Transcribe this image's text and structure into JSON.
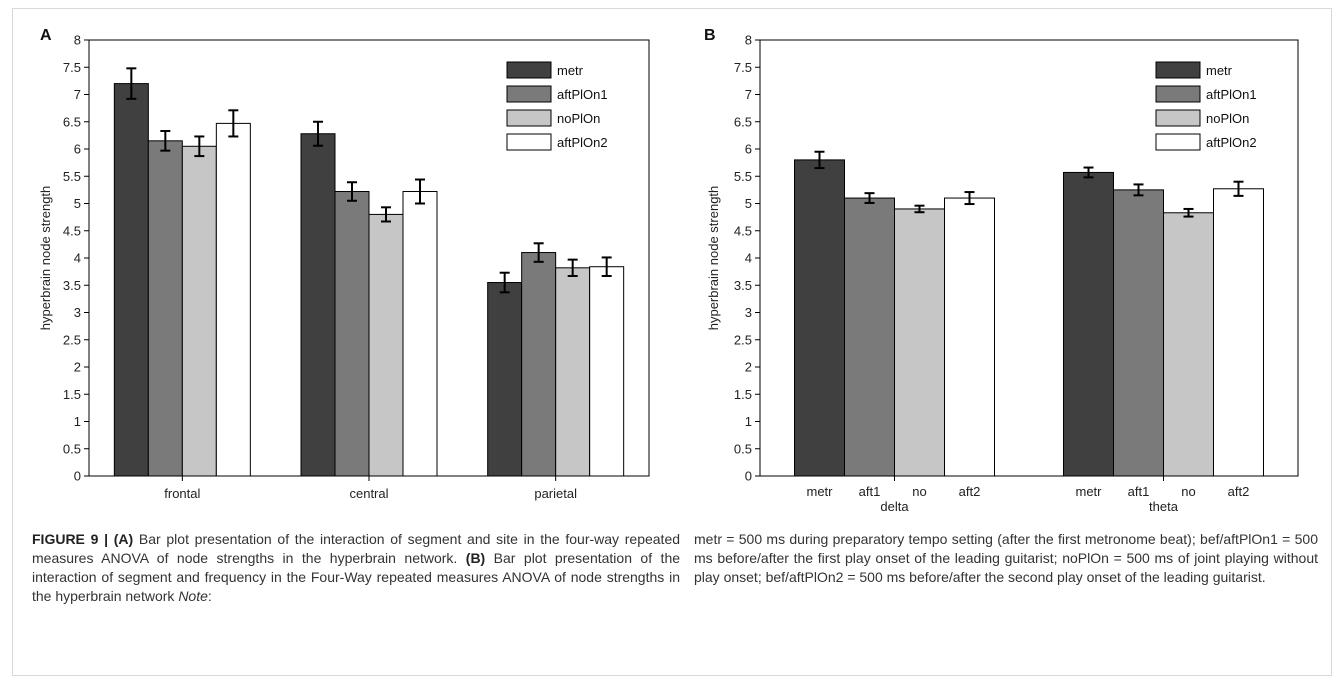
{
  "chart_data": [
    {
      "type": "bar",
      "panel_label": "A",
      "categories": [
        "frontal",
        "central",
        "parietal"
      ],
      "series": [
        {
          "name": "metr",
          "values": [
            7.2,
            6.28,
            3.55
          ],
          "errors": [
            0.28,
            0.22,
            0.18
          ],
          "color": "#404040"
        },
        {
          "name": "aftPlOn1",
          "values": [
            6.15,
            5.22,
            4.1
          ],
          "errors": [
            0.18,
            0.17,
            0.17
          ],
          "color": "#7a7a7a"
        },
        {
          "name": "noPlOn",
          "values": [
            6.05,
            4.8,
            3.82
          ],
          "errors": [
            0.18,
            0.13,
            0.15
          ],
          "color": "#c6c6c6"
        },
        {
          "name": "aftPlOn2",
          "values": [
            6.47,
            5.22,
            3.84
          ],
          "errors": [
            0.24,
            0.22,
            0.17
          ],
          "color": "#ffffff"
        }
      ],
      "ylabel": "hyperbrain node strength",
      "xlabel": "",
      "ylim": [
        0,
        8
      ],
      "yticks": [
        "0",
        "0.5",
        "1",
        "1.5",
        "2",
        "2.5",
        "3",
        "3.5",
        "4",
        "4.5",
        "5",
        "5.5",
        "6",
        "6.5",
        "7",
        "7.5",
        "8"
      ],
      "legend_position": "top-right"
    },
    {
      "type": "bar",
      "panel_label": "B",
      "categories": [
        "delta",
        "theta"
      ],
      "bar_labels": [
        "metr",
        "aft1",
        "no",
        "aft2"
      ],
      "series": [
        {
          "name": "metr",
          "values": [
            5.8,
            5.57
          ],
          "errors": [
            0.15,
            0.09
          ],
          "color": "#404040"
        },
        {
          "name": "aftPlOn1",
          "values": [
            5.1,
            5.25
          ],
          "errors": [
            0.09,
            0.1
          ],
          "color": "#7a7a7a"
        },
        {
          "name": "noPlOn",
          "values": [
            4.9,
            4.83
          ],
          "errors": [
            0.06,
            0.07
          ],
          "color": "#c6c6c6"
        },
        {
          "name": "aftPlOn2",
          "values": [
            5.1,
            5.27
          ],
          "errors": [
            0.11,
            0.13
          ],
          "color": "#ffffff"
        }
      ],
      "ylabel": "hyperbrain node strength",
      "xlabel": "",
      "ylim": [
        0,
        8
      ],
      "yticks": [
        "0",
        "0.5",
        "1",
        "1.5",
        "2",
        "2.5",
        "3",
        "3.5",
        "4",
        "4.5",
        "5",
        "5.5",
        "6",
        "6.5",
        "7",
        "7.5",
        "8"
      ],
      "legend_position": "top-right"
    }
  ],
  "caption": {
    "figure_label": "FIGURE 9 |",
    "a_label": "(A)",
    "a_text": "Bar plot presentation of the interaction of segment and site in the four-way repeated measures ANOVA of node strengths in the hyperbrain network.",
    "b_label": "(B)",
    "b_text": "Bar plot presentation of the interaction of segment and frequency in the Four-Way repeated measures ANOVA of node strengths in the hyperbrain network",
    "note_label": "Note",
    "note_text": "metr = 500 ms during preparatory tempo setting (after the first metronome beat); bef/aftPlOn1 = 500 ms before/after the first play onset of the leading guitarist; noPlOn = 500 ms of joint playing without play onset; bef/aftPlOn2 = 500 ms before/after the second play onset of the leading guitarist."
  }
}
